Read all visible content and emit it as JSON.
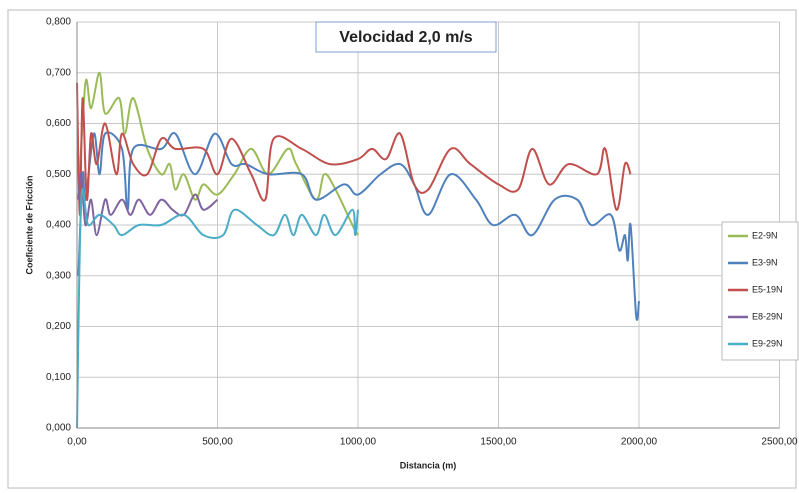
{
  "chart_data": {
    "type": "line",
    "title": "Velocidad 2,0 m/s",
    "x_label": "Distancia (m)",
    "y_label": "Coeficiente de Fricción",
    "xlim": [
      0,
      2500
    ],
    "xticks": [
      {
        "value": 0,
        "label": "0,00"
      },
      {
        "value": 500,
        "label": "500,00"
      },
      {
        "value": 1000,
        "label": "1000,00"
      },
      {
        "value": 1500,
        "label": "1500,00"
      },
      {
        "value": 2000,
        "label": "2000,00"
      },
      {
        "value": 2500,
        "label": "2500,00"
      }
    ],
    "ylim": [
      0,
      0.8
    ],
    "yticks": [
      {
        "value": 0,
        "label": "0,000"
      },
      {
        "value": 0.1,
        "label": "0,100"
      },
      {
        "value": 0.2,
        "label": "0,200"
      },
      {
        "value": 0.3,
        "label": "0,300"
      },
      {
        "value": 0.4,
        "label": "0,400"
      },
      {
        "value": 0.5,
        "label": "0,500"
      },
      {
        "value": 0.6,
        "label": "0,600"
      },
      {
        "value": 0.7,
        "label": "0,700"
      },
      {
        "value": 0.8,
        "label": "0,800"
      }
    ],
    "grid": true,
    "legend": "right",
    "series": [
      {
        "name": "E2-9N",
        "color": "#9bbb59",
        "x": [
          5,
          30,
          50,
          80,
          100,
          150,
          170,
          200,
          250,
          300,
          330,
          350,
          380,
          420,
          450,
          500,
          560,
          620,
          680,
          750,
          780,
          850,
          880,
          920,
          980,
          1000
        ],
        "values": [
          0.45,
          0.68,
          0.63,
          0.7,
          0.62,
          0.65,
          0.58,
          0.65,
          0.55,
          0.5,
          0.52,
          0.47,
          0.5,
          0.45,
          0.48,
          0.46,
          0.5,
          0.55,
          0.5,
          0.55,
          0.52,
          0.45,
          0.5,
          0.47,
          0.4,
          0.38
        ]
      },
      {
        "name": "E3-9N",
        "color": "#4f81bd",
        "x": [
          5,
          20,
          30,
          60,
          80,
          100,
          160,
          180,
          200,
          300,
          350,
          420,
          490,
          550,
          600,
          680,
          800,
          850,
          950,
          1000,
          1080,
          1150,
          1200,
          1250,
          1330,
          1420,
          1480,
          1560,
          1620,
          1700,
          1780,
          1830,
          1900,
          1930,
          1950,
          1960,
          1970,
          1990,
          2000
        ],
        "values": [
          0.3,
          0.5,
          0.45,
          0.58,
          0.5,
          0.58,
          0.55,
          0.43,
          0.55,
          0.55,
          0.58,
          0.5,
          0.58,
          0.52,
          0.52,
          0.5,
          0.5,
          0.45,
          0.48,
          0.46,
          0.5,
          0.52,
          0.48,
          0.42,
          0.5,
          0.45,
          0.4,
          0.42,
          0.38,
          0.45,
          0.45,
          0.4,
          0.42,
          0.35,
          0.38,
          0.33,
          0.4,
          0.22,
          0.25
        ]
      },
      {
        "name": "E5-19N",
        "color": "#c0504d",
        "x": [
          0,
          10,
          20,
          35,
          50,
          70,
          100,
          140,
          160,
          200,
          250,
          300,
          350,
          450,
          500,
          550,
          620,
          670,
          700,
          800,
          900,
          1000,
          1050,
          1100,
          1150,
          1200,
          1250,
          1330,
          1400,
          1500,
          1570,
          1620,
          1680,
          1750,
          1850,
          1880,
          1920,
          1950,
          1970
        ],
        "values": [
          0.68,
          0.42,
          0.65,
          0.45,
          0.58,
          0.52,
          0.6,
          0.5,
          0.58,
          0.52,
          0.5,
          0.57,
          0.55,
          0.55,
          0.5,
          0.57,
          0.5,
          0.45,
          0.57,
          0.55,
          0.52,
          0.53,
          0.55,
          0.53,
          0.58,
          0.48,
          0.47,
          0.55,
          0.52,
          0.48,
          0.47,
          0.55,
          0.48,
          0.52,
          0.5,
          0.55,
          0.43,
          0.52,
          0.5
        ]
      },
      {
        "name": "E8-29N",
        "color": "#8064a2",
        "x": [
          5,
          15,
          30,
          50,
          70,
          100,
          120,
          160,
          190,
          220,
          260,
          300,
          340,
          380,
          420,
          450,
          500
        ],
        "values": [
          0.45,
          0.5,
          0.4,
          0.45,
          0.38,
          0.45,
          0.42,
          0.45,
          0.42,
          0.45,
          0.42,
          0.45,
          0.43,
          0.42,
          0.46,
          0.43,
          0.45
        ]
      },
      {
        "name": "E9-29N",
        "color": "#4bacc6",
        "x": [
          0,
          15,
          40,
          80,
          130,
          160,
          220,
          300,
          380,
          450,
          520,
          560,
          640,
          700,
          740,
          770,
          800,
          850,
          880,
          920,
          980,
          990,
          1000
        ],
        "values": [
          0,
          0.45,
          0.4,
          0.42,
          0.4,
          0.38,
          0.4,
          0.4,
          0.42,
          0.38,
          0.38,
          0.43,
          0.4,
          0.38,
          0.42,
          0.38,
          0.42,
          0.38,
          0.42,
          0.38,
          0.43,
          0.38,
          0.43
        ]
      }
    ]
  }
}
